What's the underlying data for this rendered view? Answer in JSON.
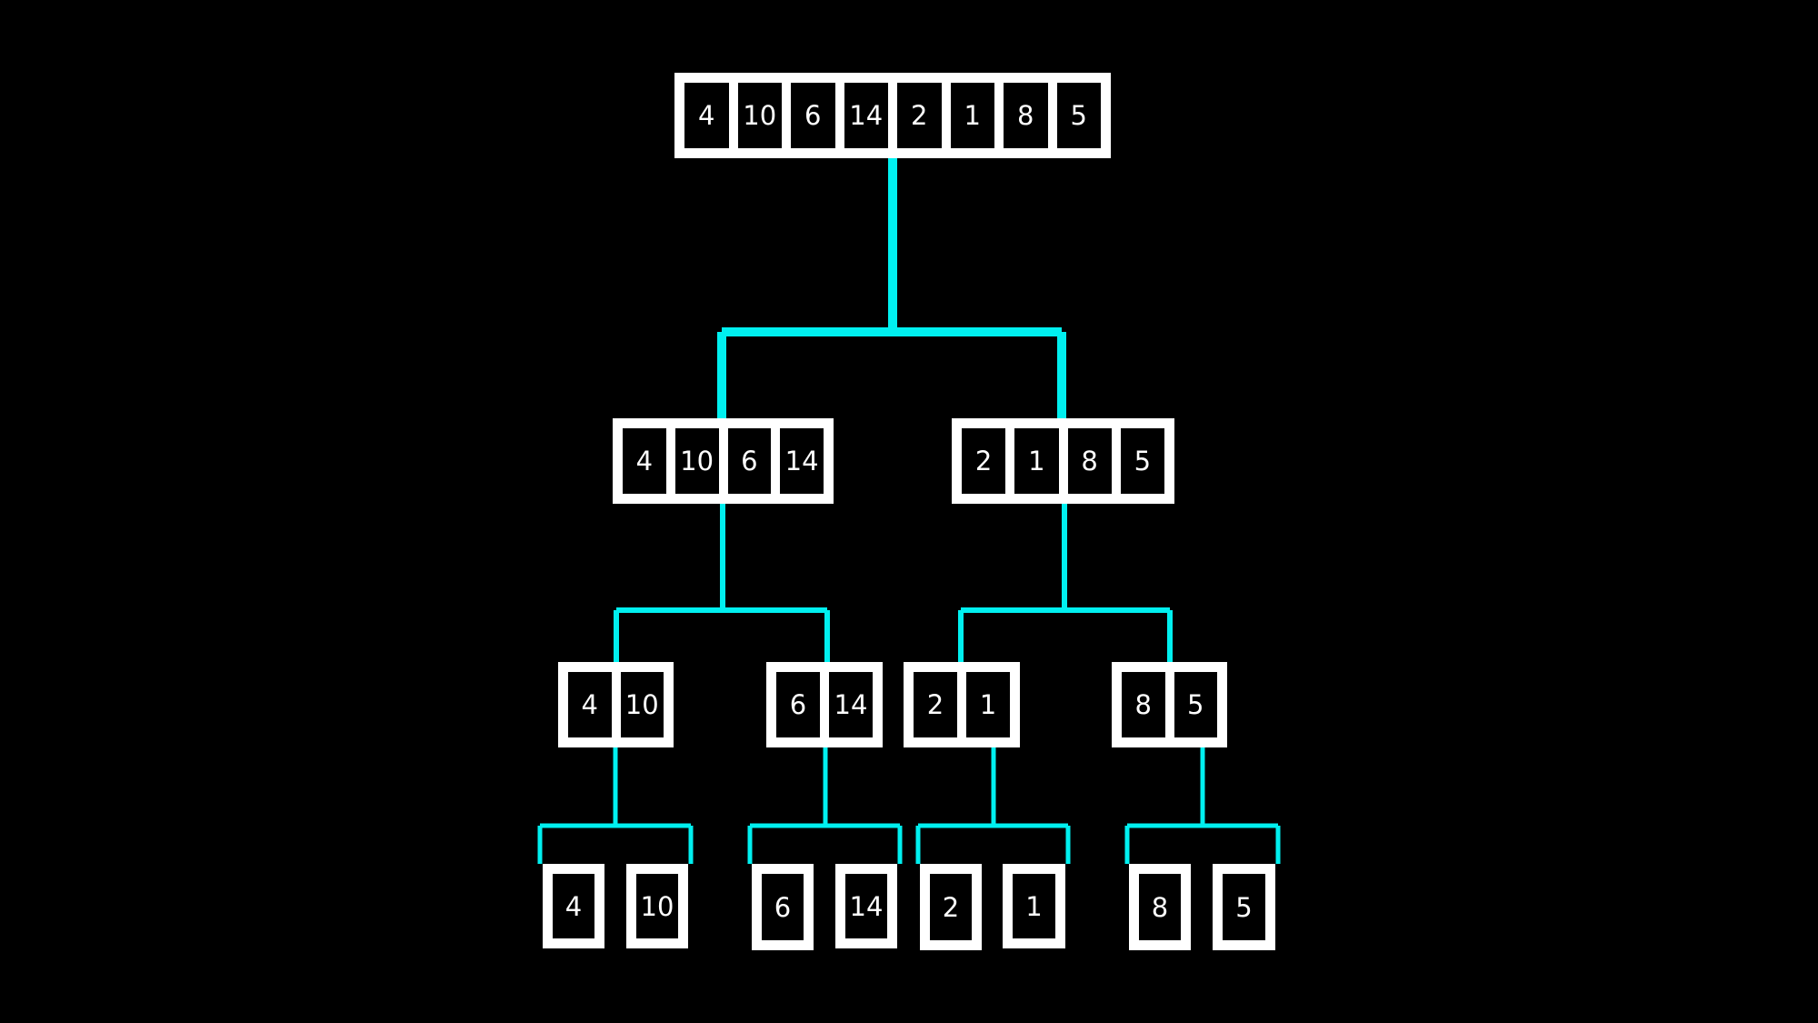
{
  "colors": {
    "background": "#000000",
    "box": "#ffffff",
    "connector": "#00f0f0",
    "text": "#ffffff"
  },
  "tree": {
    "root": [
      "4",
      "10",
      "6",
      "14",
      "2",
      "1",
      "8",
      "5"
    ],
    "level1": [
      [
        "4",
        "10",
        "6",
        "14"
      ],
      [
        "2",
        "1",
        "8",
        "5"
      ]
    ],
    "level2": [
      [
        "4",
        "10"
      ],
      [
        "6",
        "14"
      ],
      [
        "2",
        "1"
      ],
      [
        "8",
        "5"
      ]
    ],
    "leaves": [
      "4",
      "10",
      "6",
      "14",
      "2",
      "1",
      "8",
      "5"
    ]
  }
}
